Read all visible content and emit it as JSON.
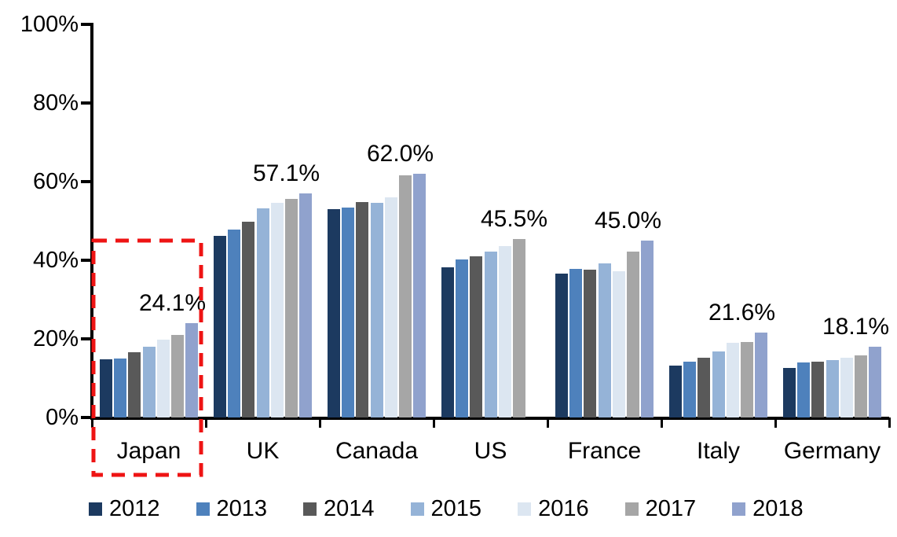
{
  "chart_data": {
    "type": "bar",
    "title": "",
    "xlabel": "",
    "ylabel": "",
    "ylim": [
      0,
      100
    ],
    "grid": false,
    "legend_position": "bottom",
    "y_tick_labels": [
      "0%",
      "20%",
      "40%",
      "60%",
      "80%",
      "100%"
    ],
    "categories": [
      "Japan",
      "UK",
      "Canada",
      "US",
      "France",
      "Italy",
      "Germany"
    ],
    "series": [
      {
        "name": "2012",
        "color": "#1C3A60",
        "values": [
          14.9,
          46.3,
          53.0,
          38.3,
          36.6,
          13.3,
          12.6
        ]
      },
      {
        "name": "2013",
        "color": "#4E81BC",
        "values": [
          15.1,
          47.8,
          53.4,
          40.2,
          37.8,
          14.2,
          14.0
        ]
      },
      {
        "name": "2014",
        "color": "#595959",
        "values": [
          16.7,
          49.8,
          54.8,
          41.0,
          37.7,
          15.2,
          14.3
        ]
      },
      {
        "name": "2015",
        "color": "#95B3D7",
        "values": [
          18.0,
          53.2,
          54.6,
          42.3,
          39.3,
          16.9,
          14.6
        ]
      },
      {
        "name": "2016",
        "color": "#DCE6F1",
        "values": [
          19.8,
          54.6,
          56.0,
          43.6,
          37.3,
          19.0,
          15.3
        ]
      },
      {
        "name": "2017",
        "color": "#A6A6A6",
        "values": [
          21.0,
          55.7,
          61.6,
          45.5,
          42.3,
          19.2,
          15.9
        ]
      },
      {
        "name": "2018",
        "color": "#90A2CD",
        "values": [
          24.1,
          57.1,
          62.0,
          null,
          45.0,
          21.6,
          18.1
        ]
      }
    ],
    "data_labels": [
      "24.1%",
      "57.1%",
      "62.0%",
      "45.5%",
      "45.0%",
      "21.6%",
      "18.1%"
    ],
    "annotations": {
      "highlight_box": {
        "category": "Japan",
        "color": "#EE1414",
        "style": "dashed"
      }
    }
  }
}
